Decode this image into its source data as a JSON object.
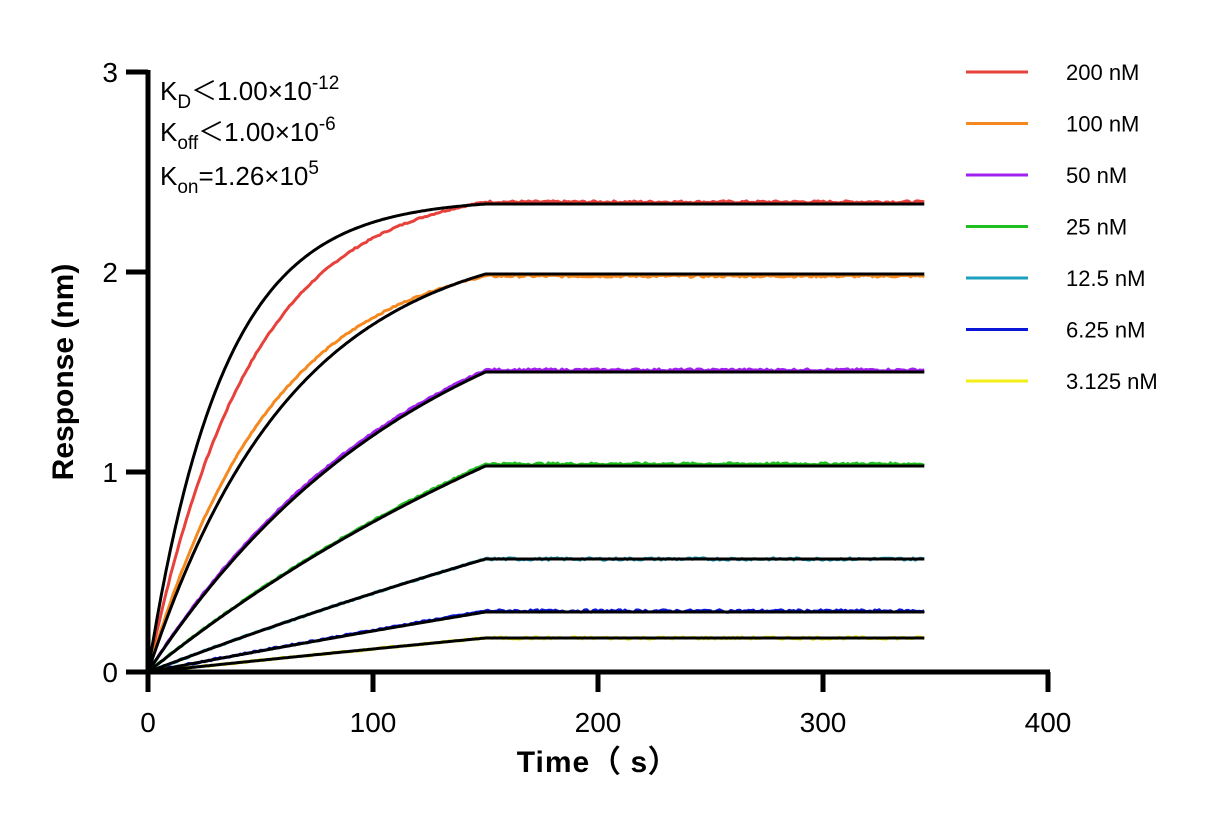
{
  "chart_data": {
    "type": "line",
    "title": "",
    "xlabel": "Time（ s）",
    "ylabel": "Response (nm)",
    "xlim": [
      0,
      400
    ],
    "ylim": [
      0,
      3
    ],
    "x_ticks": [
      "0",
      "100",
      "200",
      "300",
      "400"
    ],
    "y_ticks": [
      "0",
      "1",
      "2",
      "3"
    ],
    "grid": false,
    "legend_position": "top-right",
    "association_end_s": 150,
    "dissociation_end_s": 345,
    "annotations": {
      "kd": {
        "symbol": "K",
        "sub": "D",
        "op": "＜",
        "mantissa": "1.00×10",
        "exp": "-12"
      },
      "koff": {
        "symbol": "K",
        "sub": "off",
        "op": "＜",
        "mantissa": "1.00×10",
        "exp": "-6"
      },
      "kon": {
        "symbol": "K",
        "sub": "on",
        "op": "=",
        "mantissa": "1.26×10",
        "exp": "5"
      }
    },
    "fit_color": "#000000",
    "series": [
      {
        "name": "200 nM",
        "color": "#e8413c",
        "plateau": 2.35,
        "fit_plateau": 2.34,
        "fit_rate": 0.03,
        "obs_rate": 0.022
      },
      {
        "name": "100 nM",
        "color": "#f5891f",
        "plateau": 1.98,
        "fit_plateau": 1.99,
        "fit_rate": 0.0155,
        "obs_rate": 0.018
      },
      {
        "name": "50 nM",
        "color": "#a020f0",
        "plateau": 1.51,
        "fit_plateau": 1.5,
        "fit_rate": 0.008,
        "obs_rate": 0.0083
      },
      {
        "name": "25 nM",
        "color": "#1fbf1f",
        "plateau": 1.04,
        "fit_plateau": 1.03,
        "fit_rate": 0.0038,
        "obs_rate": 0.0038
      },
      {
        "name": "12.5 nM",
        "color": "#1e9fbd",
        "plateau": 0.565,
        "fit_plateau": 0.565,
        "fit_rate": 0.0018,
        "obs_rate": 0.0018
      },
      {
        "name": "6.25 nM",
        "color": "#0a16d8",
        "plateau": 0.305,
        "fit_plateau": 0.3,
        "fit_rate": 0.001,
        "obs_rate": 0.001
      },
      {
        "name": "3.125 nM",
        "color": "#f2ee16",
        "plateau": 0.17,
        "fit_plateau": 0.17,
        "fit_rate": 0.0006,
        "obs_rate": 0.0006
      }
    ]
  }
}
